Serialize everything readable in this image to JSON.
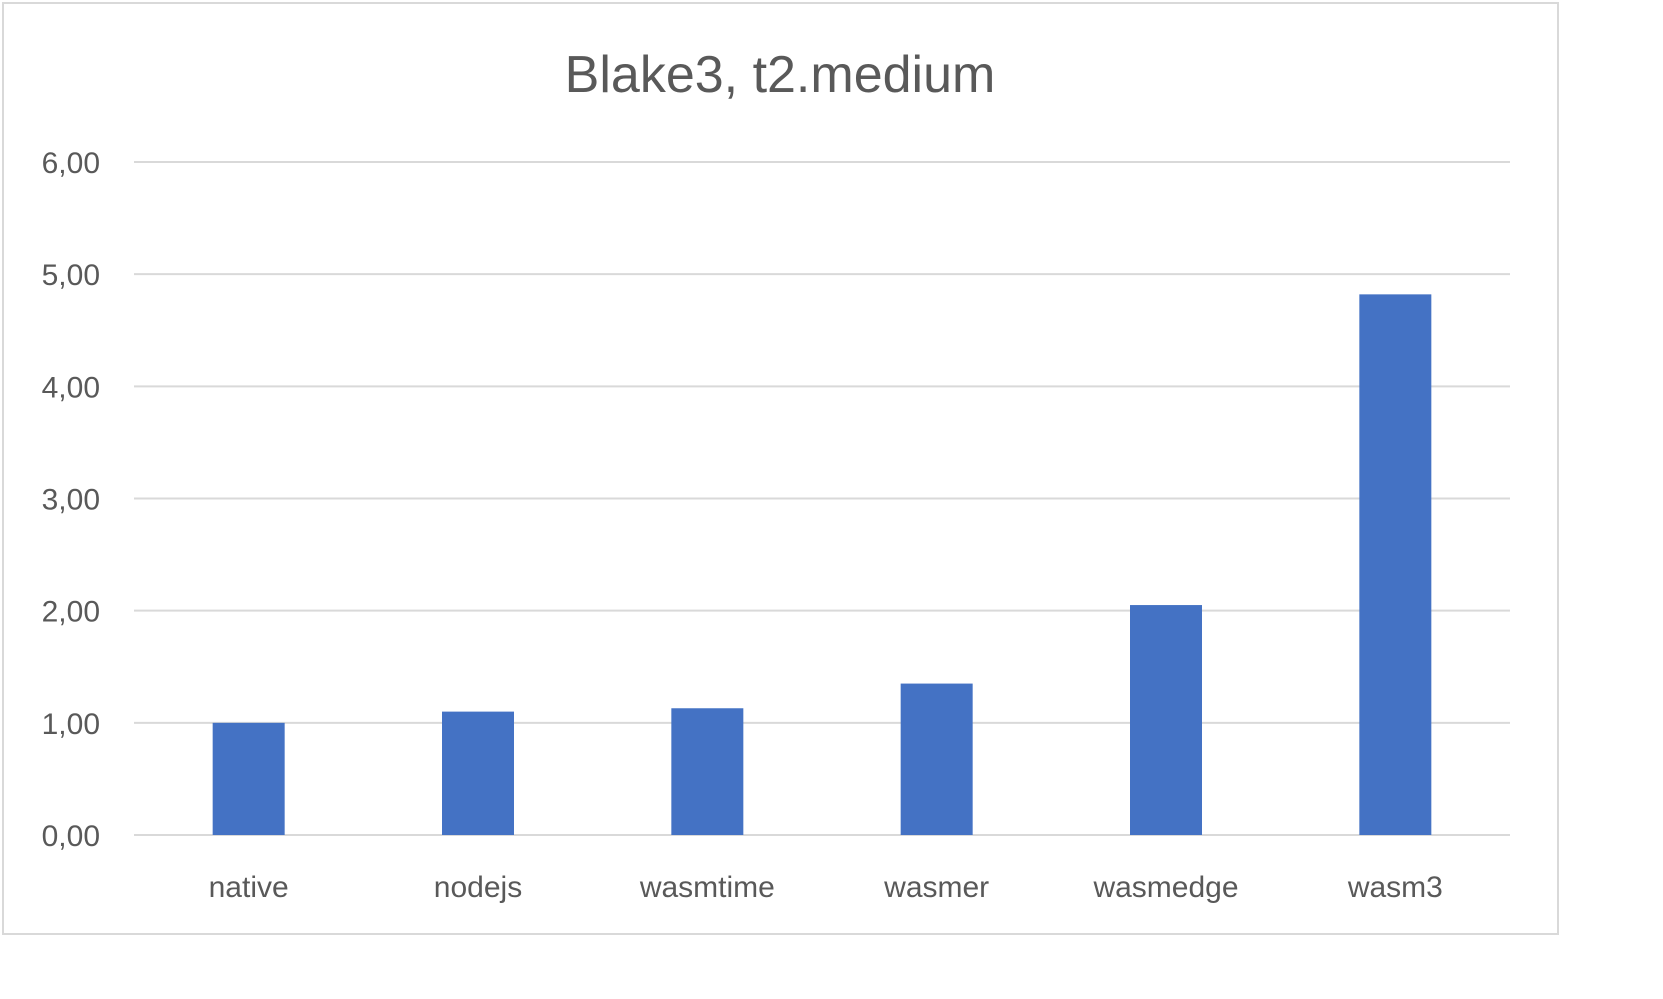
{
  "colors": {
    "bar": "#4472c4",
    "grid": "#d9d9d9",
    "text": "#595959",
    "frame": "#d9d9d9"
  },
  "chart_data": {
    "type": "bar",
    "title": "Blake3, t2.medium",
    "xlabel": "",
    "ylabel": "",
    "categories": [
      "native",
      "nodejs",
      "wasmtime",
      "wasmer",
      "wasmedge",
      "wasm3"
    ],
    "values": [
      1.0,
      1.1,
      1.13,
      1.35,
      2.05,
      4.82
    ],
    "ylim": [
      0,
      6
    ],
    "yticks": [
      "0,00",
      "1,00",
      "2,00",
      "3,00",
      "4,00",
      "5,00",
      "6,00"
    ],
    "grid": true,
    "legend": "none"
  }
}
